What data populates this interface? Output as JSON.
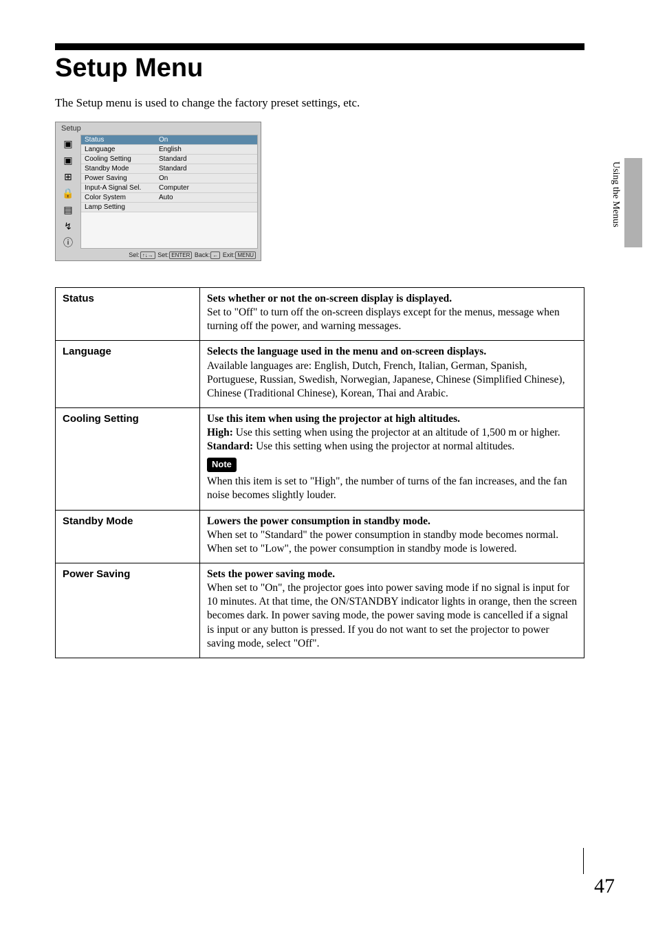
{
  "page": {
    "title": "Setup Menu",
    "intro": "The Setup menu is used to change the factory preset settings, etc.",
    "side_text": "Using the Menus",
    "page_number": "47"
  },
  "osd": {
    "header": "Setup",
    "rows": [
      {
        "label": "Status",
        "value": "On",
        "selected": true
      },
      {
        "label": "Language",
        "value": "English",
        "selected": false,
        "prefix": "🔤"
      },
      {
        "label": "Cooling Setting",
        "value": "Standard",
        "selected": false
      },
      {
        "label": "Standby Mode",
        "value": "Standard",
        "selected": false
      },
      {
        "label": "Power Saving",
        "value": "On",
        "selected": false
      },
      {
        "label": "Input-A Signal Sel.",
        "value": "Computer",
        "selected": false
      },
      {
        "label": "Color System",
        "value": "Auto",
        "selected": false
      },
      {
        "label": "Lamp Setting",
        "value": "",
        "selected": false
      }
    ],
    "footer": {
      "sel": "Sel:",
      "set": "Set:",
      "back": "Back:",
      "exit": "Exit:",
      "k_sel": "↑↓→",
      "k_set": "ENTER",
      "k_back": "←",
      "k_exit": "MENU"
    },
    "icons": [
      "▣",
      "▣",
      "⊞",
      "🔒",
      "▤",
      "↯",
      "ⓘ"
    ]
  },
  "settings": [
    {
      "name": "Status",
      "lead": "Sets whether or not the on-screen display is displayed.",
      "body": "Set to \"Off\" to turn off the on-screen displays except for the menus, message when turning off the power, and warning messages."
    },
    {
      "name": "Language",
      "lead": "Selects the language used in the menu and on-screen displays.",
      "body": "Available languages are: English, Dutch, French, Italian, German, Spanish, Portuguese, Russian, Swedish, Norwegian, Japanese, Chinese (Simplified Chinese), Chinese (Traditional Chinese), Korean, Thai and Arabic."
    },
    {
      "name": "Cooling Setting",
      "lead": "Use this item when using the projector at high altitudes.",
      "opts": [
        {
          "k": "High:",
          "v": "Use this setting when using the projector at an altitude of 1,500 m or higher."
        },
        {
          "k": "Standard:",
          "v": "Use this setting when using the projector at normal altitudes."
        }
      ],
      "note_label": "Note",
      "note": "When this item is set to \"High\", the number of turns of the fan increases, and the fan noise becomes slightly louder."
    },
    {
      "name": "Standby Mode",
      "lead": "Lowers the power consumption in standby mode.",
      "body": "When set to \"Standard\" the power consumption in standby mode becomes normal.\nWhen set to \"Low\", the power consumption in standby mode is lowered."
    },
    {
      "name": "Power Saving",
      "lead": "Sets the power saving mode.",
      "body": "When set to \"On\", the projector goes into power saving mode if no signal is input for 10 minutes. At that time, the ON/STANDBY indicator lights in orange, then the screen becomes dark. In power saving mode, the power saving mode is cancelled if a signal is input or any button is pressed. If you do not want to set the projector to power saving mode, select \"Off\"."
    }
  ]
}
